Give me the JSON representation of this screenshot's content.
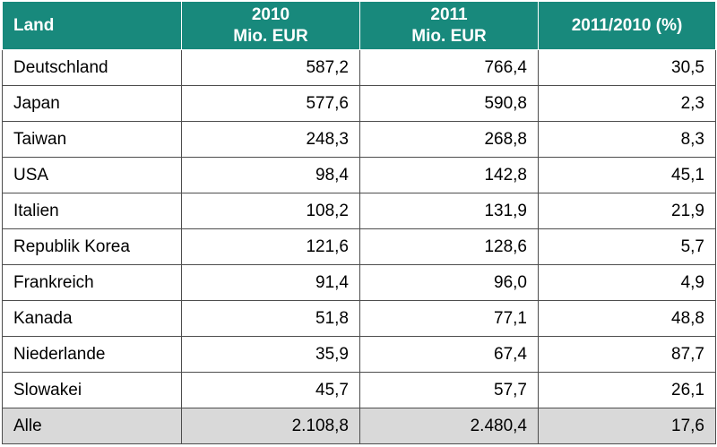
{
  "table": {
    "headers": {
      "land": "Land",
      "y2010_line1": "2010",
      "y2010_line2": "Mio. EUR",
      "y2011_line1": "2011",
      "y2011_line2": "Mio. EUR",
      "change": "2011/2010 (%)"
    },
    "rows": [
      {
        "land": "Deutschland",
        "v2010": "587,2",
        "v2011": "766,4",
        "change": "30,5"
      },
      {
        "land": "Japan",
        "v2010": "577,6",
        "v2011": "590,8",
        "change": "2,3"
      },
      {
        "land": "Taiwan",
        "v2010": "248,3",
        "v2011": "268,8",
        "change": "8,3"
      },
      {
        "land": "USA",
        "v2010": "98,4",
        "v2011": "142,8",
        "change": "45,1"
      },
      {
        "land": "Italien",
        "v2010": "108,2",
        "v2011": "131,9",
        "change": "21,9"
      },
      {
        "land": "Republik Korea",
        "v2010": "121,6",
        "v2011": "128,6",
        "change": "5,7"
      },
      {
        "land": "Frankreich",
        "v2010": "91,4",
        "v2011": "96,0",
        "change": "4,9"
      },
      {
        "land": "Kanada",
        "v2010": "51,8",
        "v2011": "77,1",
        "change": "48,8"
      },
      {
        "land": "Niederlande",
        "v2010": "35,9",
        "v2011": "67,4",
        "change": "87,7"
      },
      {
        "land": "Slowakei",
        "v2010": "45,7",
        "v2011": "57,7",
        "change": "26,1"
      }
    ],
    "total": {
      "land": "Alle",
      "v2010": "2.108,8",
      "v2011": "2.480,4",
      "change": "17,6"
    },
    "colors": {
      "header_bg": "#18897c",
      "header_text": "#ffffff",
      "total_bg": "#d9d9d9"
    }
  }
}
